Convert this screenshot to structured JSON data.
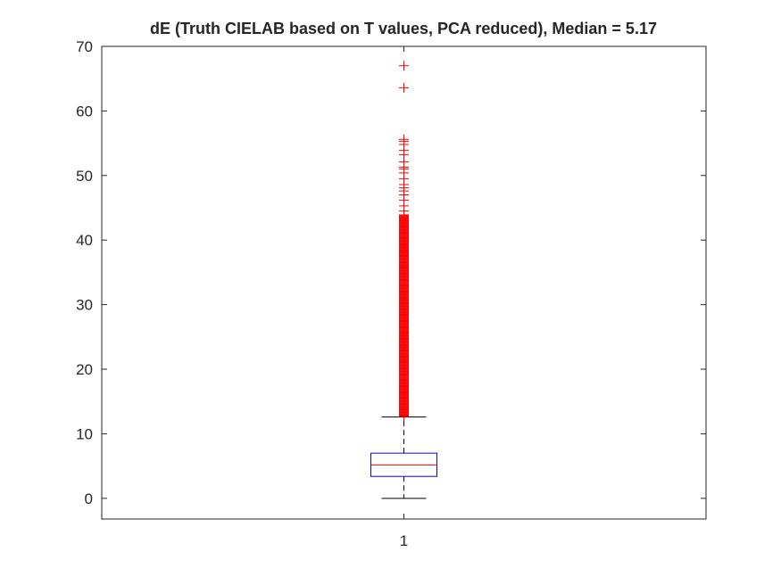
{
  "chart_data": {
    "type": "box",
    "title": "dE (Truth CIELAB based on T values, PCA reduced), Median = 5.17",
    "xlabel": "",
    "ylabel": "",
    "categories": [
      "1"
    ],
    "ylim": [
      -3.2,
      70
    ],
    "yticks": [
      0,
      10,
      20,
      30,
      40,
      50,
      60,
      70
    ],
    "box": {
      "whisker_low": 0,
      "q1": 3.4,
      "median": 5.17,
      "q3": 7.0,
      "whisker_high": 12.6
    },
    "outliers_dense_range": [
      12.7,
      44.0
    ],
    "outliers": [
      44.5,
      45.3,
      46.2,
      47.0,
      47.6,
      48.1,
      48.6,
      49.5,
      50.4,
      51.0,
      51.3,
      52.1,
      53.2,
      53.9,
      54.8,
      55.3,
      55.6,
      63.6,
      67.0
    ],
    "colors": {
      "box": "#0000ff",
      "median": "#ff0000",
      "outlier": "#ff0000",
      "whisker": "#000000",
      "axis": "#262626"
    },
    "grid": false
  }
}
